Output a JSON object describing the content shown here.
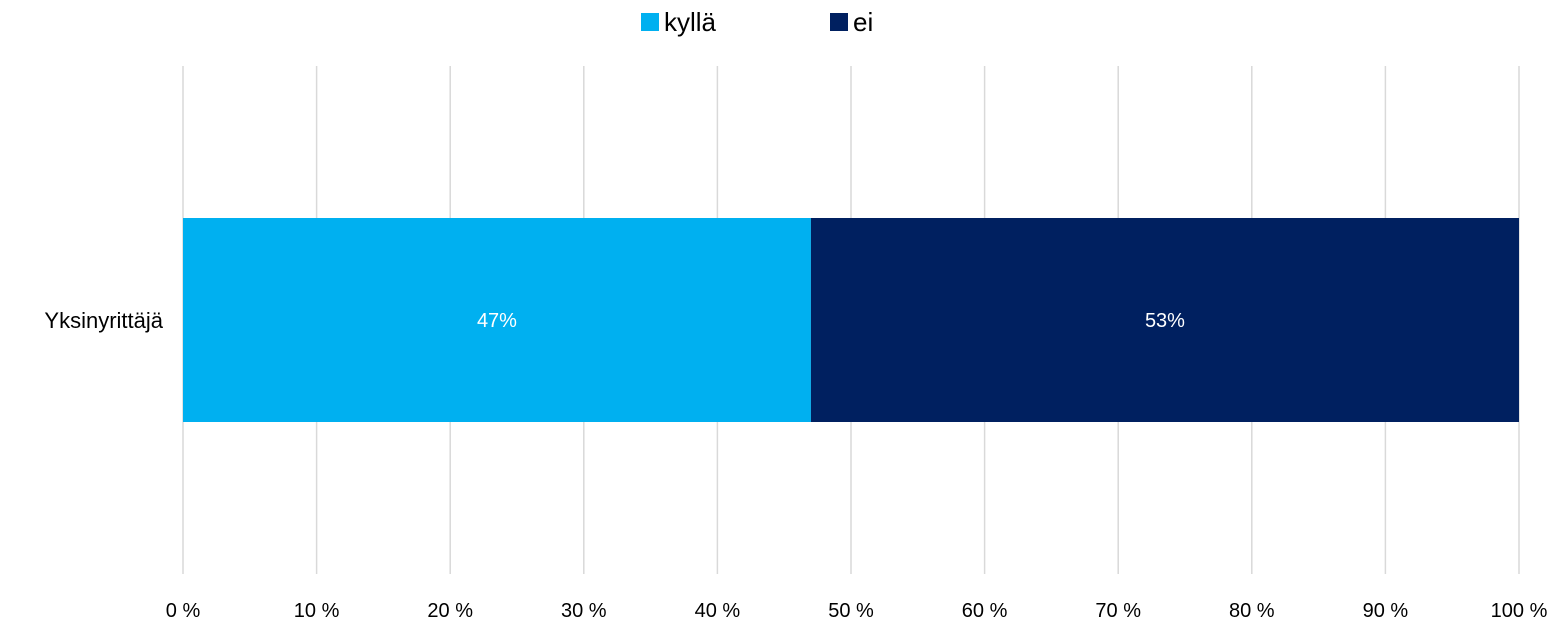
{
  "chart_data": {
    "type": "bar",
    "orientation": "horizontal",
    "stacked": true,
    "categories": [
      "Yksinyrittäjä"
    ],
    "series": [
      {
        "name": "kyllä",
        "values": [
          47
        ],
        "labels": [
          "47%"
        ],
        "color": "#00B0F0"
      },
      {
        "name": "ei",
        "values": [
          53
        ],
        "labels": [
          "53%"
        ],
        "color": "#002060"
      }
    ],
    "xlim": [
      0,
      100
    ],
    "x_ticks": [
      0,
      10,
      20,
      30,
      40,
      50,
      60,
      70,
      80,
      90,
      100
    ],
    "x_tick_labels": [
      "0 %",
      "10 %",
      "20 %",
      "30 %",
      "40 %",
      "50 %",
      "60 %",
      "70 %",
      "80 %",
      "90 %",
      "100 %"
    ],
    "grid": true,
    "grid_color": "#D9D9D9",
    "legend_position": "top"
  }
}
